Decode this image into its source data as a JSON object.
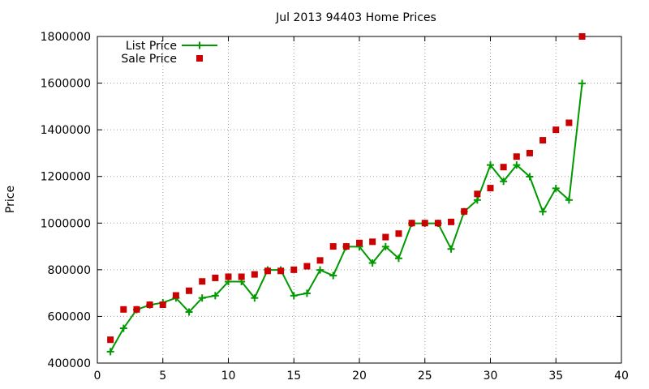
{
  "chart_data": {
    "type": "scatter",
    "title": "Jul 2013 94403 Home Prices",
    "xlabel": "",
    "ylabel": "Price",
    "xlim": [
      0,
      40
    ],
    "ylim": [
      400000,
      1800000
    ],
    "x_ticks": [
      0,
      5,
      10,
      15,
      20,
      25,
      30,
      35,
      40
    ],
    "y_ticks": [
      400000,
      600000,
      800000,
      1000000,
      1200000,
      1400000,
      1600000,
      1800000
    ],
    "grid": "dotted",
    "legend_position": "top-left",
    "series": [
      {
        "name": "List Price",
        "style": "line-with-plus-markers",
        "color": "#009900",
        "x": [
          1,
          2,
          3,
          4,
          5,
          6,
          7,
          8,
          9,
          10,
          11,
          12,
          13,
          14,
          15,
          16,
          17,
          18,
          19,
          20,
          21,
          22,
          23,
          24,
          25,
          26,
          27,
          28,
          29,
          30,
          31,
          32,
          33,
          34,
          35,
          36,
          37
        ],
        "y": [
          449000,
          549000,
          629000,
          649000,
          659000,
          679000,
          619000,
          679000,
          689000,
          749000,
          749000,
          679000,
          799000,
          799000,
          689000,
          699000,
          799000,
          775000,
          899000,
          899000,
          829000,
          899000,
          849000,
          999000,
          999000,
          999000,
          889000,
          1049000,
          1099000,
          1249000,
          1179000,
          1249000,
          1199000,
          1049000,
          1149000,
          1099000,
          1599000
        ]
      },
      {
        "name": "Sale Price",
        "style": "square-markers",
        "color": "#cc0000",
        "x": [
          1,
          2,
          3,
          4,
          5,
          6,
          7,
          8,
          9,
          10,
          11,
          12,
          13,
          14,
          15,
          16,
          17,
          18,
          19,
          20,
          21,
          22,
          23,
          24,
          25,
          26,
          27,
          28,
          29,
          30,
          31,
          32,
          33,
          34,
          35,
          36,
          37
        ],
        "y": [
          500000,
          630000,
          630000,
          650000,
          650000,
          690000,
          710000,
          750000,
          765000,
          770000,
          770000,
          780000,
          795000,
          795000,
          800000,
          815000,
          840000,
          900000,
          900000,
          915000,
          920000,
          940000,
          955000,
          1000000,
          1000000,
          1000000,
          1005000,
          1050000,
          1125000,
          1150000,
          1240000,
          1285000,
          1300000,
          1355000,
          1400000,
          1430000,
          1800000
        ]
      }
    ]
  }
}
